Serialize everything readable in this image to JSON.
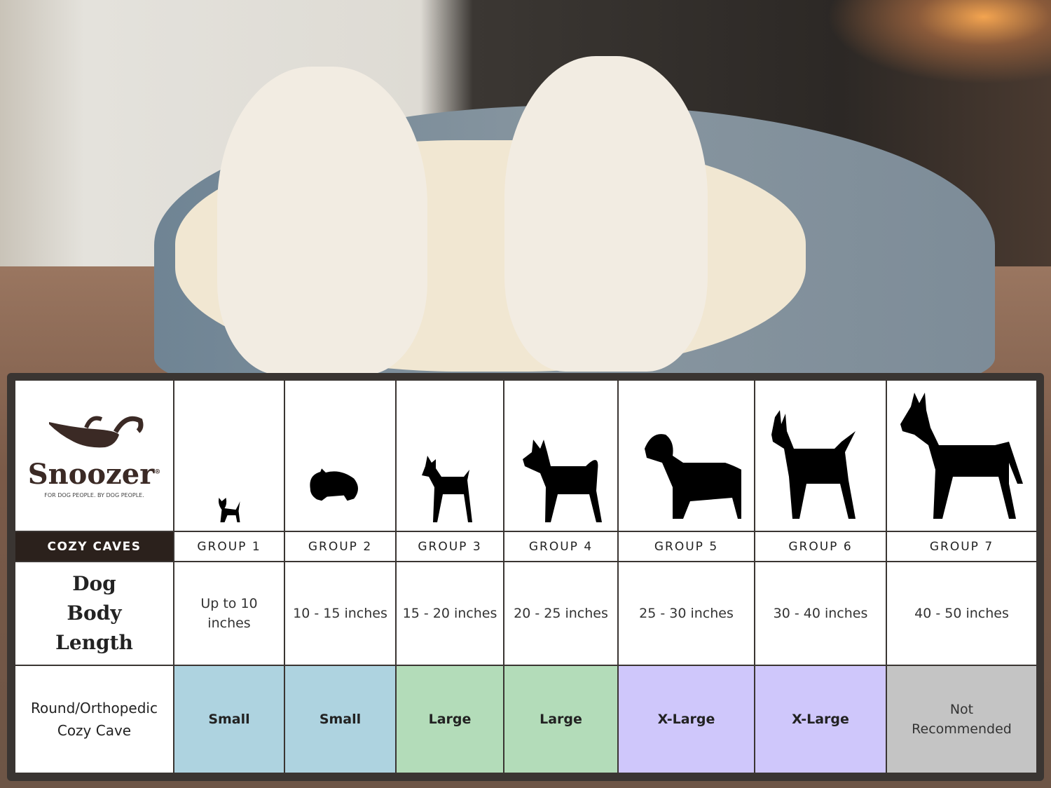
{
  "brand": {
    "name": "Snoozer",
    "tagline": "FOR DOG PEOPLE. BY DOG PEOPLE.",
    "registered": "®"
  },
  "product_label": "COZY CAVES",
  "row_labels": {
    "length": "Dog Body Length",
    "bed": "Round/Orthopedic Cozy Cave"
  },
  "colors": {
    "small": "#aed3e0",
    "large": "#b3dcb9",
    "xlarge": "#cfc7fb",
    "none": "#c4c4c4",
    "header": "#2b211c"
  },
  "groups": [
    {
      "label": "GROUP 1",
      "length": "Up to 10 inches",
      "size": "Small",
      "tone": "small",
      "icon": "chihuahua-silhouette-icon"
    },
    {
      "label": "GROUP 2",
      "length": "10 - 15 inches",
      "size": "Small",
      "tone": "small",
      "icon": "pomeranian-silhouette-icon"
    },
    {
      "label": "GROUP 3",
      "length": "15 - 20 inches",
      "size": "Large",
      "tone": "large",
      "icon": "boston-terrier-silhouette-icon"
    },
    {
      "label": "GROUP 4",
      "length": "20 - 25 inches",
      "size": "Large",
      "tone": "large",
      "icon": "shiba-silhouette-icon"
    },
    {
      "label": "GROUP 5",
      "length": "25 - 30 inches",
      "size": "X-Large",
      "tone": "xlarge",
      "icon": "golden-retriever-silhouette-icon"
    },
    {
      "label": "GROUP 6",
      "length": "30 - 40 inches",
      "size": "X-Large",
      "tone": "xlarge",
      "icon": "doberman-silhouette-icon"
    },
    {
      "label": "GROUP 7",
      "length": "40 - 50 inches",
      "size": "Not Recommended",
      "tone": "none",
      "icon": "great-dane-silhouette-icon"
    }
  ]
}
